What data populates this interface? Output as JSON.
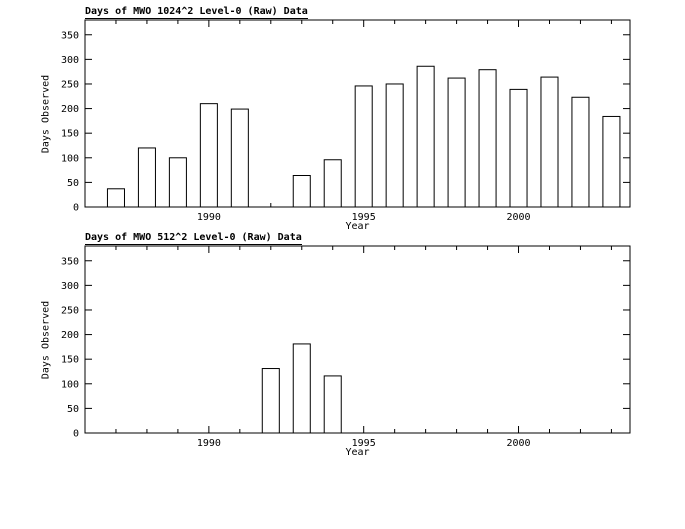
{
  "page": {
    "background": "#ffffff",
    "axis_color": "#000000"
  },
  "chart_data": [
    {
      "type": "bar",
      "title": "Days of MWO 1024^2 Level-0 (Raw) Data",
      "xlabel": "Year",
      "ylabel": "Days Observed",
      "xlim": [
        1986,
        2003.6
      ],
      "ylim": [
        0,
        380
      ],
      "yticks": [
        0,
        50,
        100,
        150,
        200,
        250,
        300,
        350
      ],
      "xticks": [
        1990,
        1995,
        2000
      ],
      "grid": false,
      "bar_fill": "#ffffff",
      "bar_stroke": "#000000",
      "x": [
        1987,
        1988,
        1989,
        1990,
        1991,
        1993,
        1994,
        1995,
        1996,
        1997,
        1998,
        1999,
        2000,
        2001,
        2002,
        2003
      ],
      "values": [
        37,
        120,
        100,
        210,
        199,
        64,
        96,
        246,
        250,
        286,
        262,
        279,
        239,
        264,
        223,
        184
      ]
    },
    {
      "type": "bar",
      "title": "Days of MWO 512^2 Level-0 (Raw) Data",
      "xlabel": "Year",
      "ylabel": "Days Observed",
      "xlim": [
        1986,
        2003.6
      ],
      "ylim": [
        0,
        380
      ],
      "yticks": [
        0,
        50,
        100,
        150,
        200,
        250,
        300,
        350
      ],
      "xticks": [
        1990,
        1995,
        2000
      ],
      "grid": false,
      "bar_fill": "#ffffff",
      "bar_stroke": "#000000",
      "x": [
        1992,
        1993,
        1994
      ],
      "values": [
        131,
        181,
        116
      ]
    }
  ]
}
